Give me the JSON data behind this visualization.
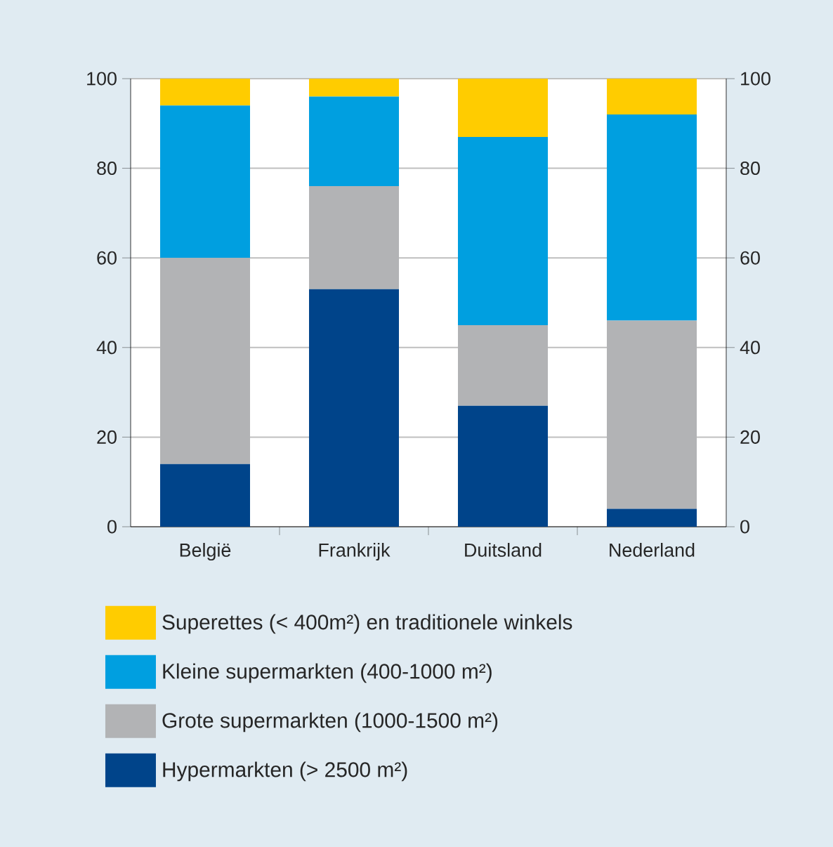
{
  "chart_data": {
    "type": "bar",
    "stacked": true,
    "categories": [
      "België",
      "Frankrijk",
      "Duitsland",
      "Nederland"
    ],
    "series": [
      {
        "name": "Hypermarkten (> 2500 m²)",
        "color": "#00448a",
        "values": [
          14,
          53,
          27,
          4
        ]
      },
      {
        "name": "Grote supermarkten (1000-1500 m²)",
        "color": "#b2b3b5",
        "values": [
          46,
          23,
          18,
          42
        ]
      },
      {
        "name": "Kleine supermarkten (400-1000 m²)",
        "color": "#009fe0",
        "values": [
          34,
          20,
          42,
          46
        ]
      },
      {
        "name": "Superettes (< 400m²) en traditionele winkels",
        "color": "#ffcc00",
        "values": [
          6,
          4,
          13,
          8
        ]
      }
    ],
    "ylim": [
      0,
      100
    ],
    "yticks": [
      0,
      20,
      40,
      60,
      80,
      100
    ],
    "y2lim": [
      0,
      100
    ],
    "y2ticks": [
      0,
      20,
      40,
      60,
      80,
      100
    ],
    "grid": "y",
    "legend": "bottom"
  }
}
